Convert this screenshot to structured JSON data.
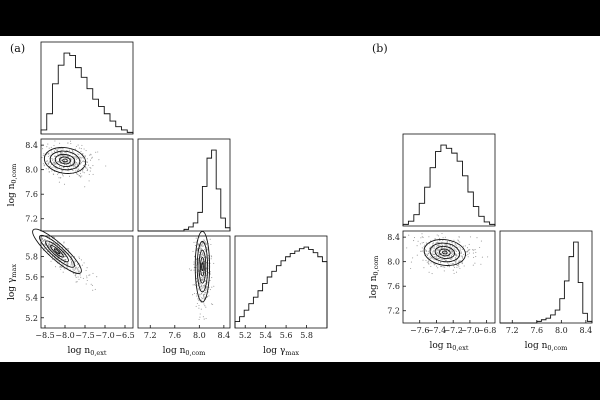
{
  "panels": [
    {
      "label": "(a)",
      "variables": [
        "log n0,ext",
        "log n0,com",
        "log γmax"
      ]
    },
    {
      "label": "(b)",
      "variables": [
        "log n0,ext",
        "log n0,com"
      ]
    }
  ],
  "chart_data": [
    {
      "type": "corner",
      "panel": "(a)",
      "params": [
        {
          "name": "log n0,ext",
          "axis_label": "log n_{0,ext}",
          "range": [
            -8.6,
            -6.3
          ],
          "ticks": [
            -8.5,
            -8.0,
            -7.5,
            -7.0,
            -6.5
          ],
          "hist_bins": [
            0.05,
            0.25,
            0.62,
            0.85,
            1.0,
            0.97,
            0.82,
            0.7,
            0.56,
            0.43,
            0.34,
            0.25,
            0.16,
            0.09,
            0.05,
            0.02
          ]
        },
        {
          "name": "log n0,com",
          "axis_label": "log n_{0,com}",
          "range": [
            7.0,
            8.5
          ],
          "ticks": [
            7.2,
            7.6,
            8.0,
            8.4
          ],
          "tick_labels_left": [
            7.2,
            7.6,
            8.0,
            8.4
          ],
          "hist_bins": [
            0.0,
            0.0,
            0.0,
            0.0,
            0.0,
            0.0,
            0.0,
            0.0,
            0.0,
            0.0,
            0.02,
            0.05,
            0.1,
            0.23,
            0.55,
            0.9,
            1.0,
            0.52,
            0.16,
            0.04
          ]
        },
        {
          "name": "log γmax",
          "axis_label": "log γ_{max}",
          "range": [
            5.1,
            6.0
          ],
          "ticks": [
            5.2,
            5.4,
            5.6,
            5.8
          ],
          "tick_labels_left": [
            5.2,
            5.4,
            5.6,
            5.8
          ],
          "hist_bins": [
            0.08,
            0.14,
            0.22,
            0.3,
            0.38,
            0.46,
            0.55,
            0.63,
            0.7,
            0.77,
            0.83,
            0.88,
            0.92,
            0.95,
            0.98,
            1.0,
            0.97,
            0.93,
            0.88,
            0.82
          ]
        }
      ],
      "joint": [
        {
          "x": "log n0,ext",
          "y": "log n0,com",
          "center": [
            -8.0,
            8.15
          ],
          "note": "compact elliptical mode near (-8.0, 8.15)"
        },
        {
          "x": "log n0,ext",
          "y": "log γmax",
          "center": [
            -8.2,
            5.85
          ],
          "note": "elongated negative correlation"
        },
        {
          "x": "log n0,com",
          "y": "log γmax",
          "center": [
            8.05,
            5.7
          ],
          "note": "narrow vertical band"
        }
      ]
    },
    {
      "type": "corner",
      "panel": "(b)",
      "params": [
        {
          "name": "log n0,ext",
          "axis_label": "log n_{0,ext}",
          "range": [
            -7.8,
            -6.7
          ],
          "ticks": [
            -7.6,
            -7.4,
            -7.2,
            -7.0,
            -6.8
          ],
          "hist_bins": [
            0.02,
            0.06,
            0.14,
            0.28,
            0.48,
            0.72,
            0.92,
            1.0,
            0.96,
            0.9,
            0.8,
            0.62,
            0.42,
            0.24,
            0.12,
            0.05,
            0.02
          ]
        },
        {
          "name": "log n0,com",
          "axis_label": "log n_{0,com}",
          "range": [
            7.0,
            8.5
          ],
          "ticks": [
            7.2,
            7.6,
            8.0,
            8.4
          ],
          "tick_labels_left": [
            7.2,
            7.6,
            8.0,
            8.4
          ],
          "hist_bins": [
            0.0,
            0.0,
            0.0,
            0.0,
            0.0,
            0.0,
            0.0,
            0.0,
            0.02,
            0.04,
            0.06,
            0.1,
            0.16,
            0.3,
            0.52,
            0.82,
            1.0,
            0.5,
            0.12,
            0.02
          ]
        }
      ],
      "joint": [
        {
          "x": "log n0,ext",
          "y": "log n0,com",
          "center": [
            -7.3,
            8.15
          ],
          "note": "roughly round mode"
        }
      ]
    }
  ]
}
